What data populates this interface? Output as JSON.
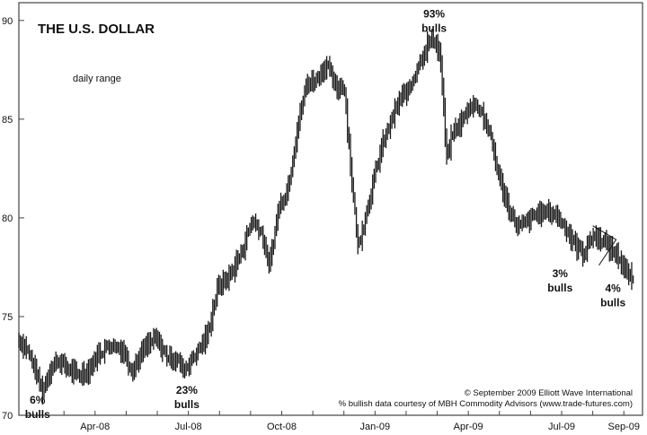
{
  "chart_data": {
    "type": "bar",
    "title": "THE U.S. DOLLAR",
    "subtitle": "daily range",
    "ylim": [
      70,
      90.9
    ],
    "y_ticks": [
      70,
      75,
      80,
      85,
      90
    ],
    "x_ticks": [
      "Apr-08",
      "Jul-08",
      "Oct-08",
      "Jan-09",
      "Apr-09",
      "Jul-09",
      "Sep-09"
    ],
    "x_tick_positions": [
      1.0,
      4.0,
      7.0,
      10.0,
      13.0,
      16.0,
      18.0
    ],
    "xlim": [
      -1.45,
      18.6
    ],
    "series": [
      {
        "values": [
          [
            -1.45,
            73.8
          ],
          [
            -1.2,
            73.4
          ],
          [
            -0.9,
            72.2
          ],
          [
            -0.7,
            71.2
          ],
          [
            -0.45,
            72.3
          ],
          [
            -0.2,
            72.8
          ],
          [
            0.1,
            72.4
          ],
          [
            0.45,
            72.0
          ],
          [
            0.8,
            72.3
          ],
          [
            1.1,
            73.1
          ],
          [
            1.5,
            73.6
          ],
          [
            1.9,
            73.3
          ],
          [
            2.2,
            72.3
          ],
          [
            2.6,
            73.4
          ],
          [
            2.95,
            73.9
          ],
          [
            3.3,
            73.0
          ],
          [
            3.65,
            72.8
          ],
          [
            3.85,
            72.3
          ],
          [
            4.2,
            73.0
          ],
          [
            4.6,
            74.0
          ],
          [
            4.95,
            76.5
          ],
          [
            5.3,
            77.0
          ],
          [
            5.7,
            78.2
          ],
          [
            6.05,
            79.9
          ],
          [
            6.35,
            79.3
          ],
          [
            6.6,
            77.5
          ],
          [
            6.9,
            80.5
          ],
          [
            7.2,
            81.5
          ],
          [
            7.5,
            84.5
          ],
          [
            7.8,
            86.8
          ],
          [
            8.1,
            87.0
          ],
          [
            8.45,
            87.8
          ],
          [
            8.75,
            86.5
          ],
          [
            9.0,
            86.8
          ],
          [
            9.25,
            82.0
          ],
          [
            9.45,
            78.5
          ],
          [
            9.65,
            79.8
          ],
          [
            9.9,
            81.5
          ],
          [
            10.2,
            83.5
          ],
          [
            10.5,
            84.8
          ],
          [
            10.8,
            86.0
          ],
          [
            11.1,
            86.5
          ],
          [
            11.4,
            87.8
          ],
          [
            11.7,
            88.8
          ],
          [
            11.9,
            89.1
          ],
          [
            12.1,
            88.2
          ],
          [
            12.3,
            83.0
          ],
          [
            12.5,
            84.3
          ],
          [
            12.8,
            84.9
          ],
          [
            13.1,
            85.8
          ],
          [
            13.4,
            85.5
          ],
          [
            13.7,
            84.2
          ],
          [
            14.0,
            82.0
          ],
          [
            14.3,
            80.5
          ],
          [
            14.6,
            79.5
          ],
          [
            14.9,
            79.8
          ],
          [
            15.2,
            80.2
          ],
          [
            15.5,
            80.3
          ],
          [
            15.8,
            80.2
          ],
          [
            16.1,
            79.6
          ],
          [
            16.4,
            78.7
          ],
          [
            16.7,
            78.2
          ],
          [
            17.0,
            79.1
          ],
          [
            17.3,
            78.9
          ],
          [
            17.6,
            78.4
          ],
          [
            17.85,
            78.0
          ],
          [
            18.05,
            77.3
          ],
          [
            18.3,
            76.8
          ]
        ]
      }
    ],
    "annotations": [
      {
        "lines": [
          "6%",
          "bulls"
        ],
        "x": -0.85,
        "y": 70.6
      },
      {
        "lines": [
          "23%",
          "bulls"
        ],
        "x": 3.95,
        "y": 71.1
      },
      {
        "lines": [
          "93%",
          "bulls"
        ],
        "x": 11.9,
        "y": 90.15
      },
      {
        "lines": [
          "3%",
          "bulls"
        ],
        "x": 15.95,
        "y": 77.0
      },
      {
        "lines": [
          "4%",
          "bulls"
        ],
        "x": 17.65,
        "y": 76.25
      }
    ],
    "credits": [
      "© September 2009 Elliott Wave International",
      "% bullish data courtesy of MBH Commodity Advisors (www.trade-futures.com)"
    ],
    "grid": false
  }
}
